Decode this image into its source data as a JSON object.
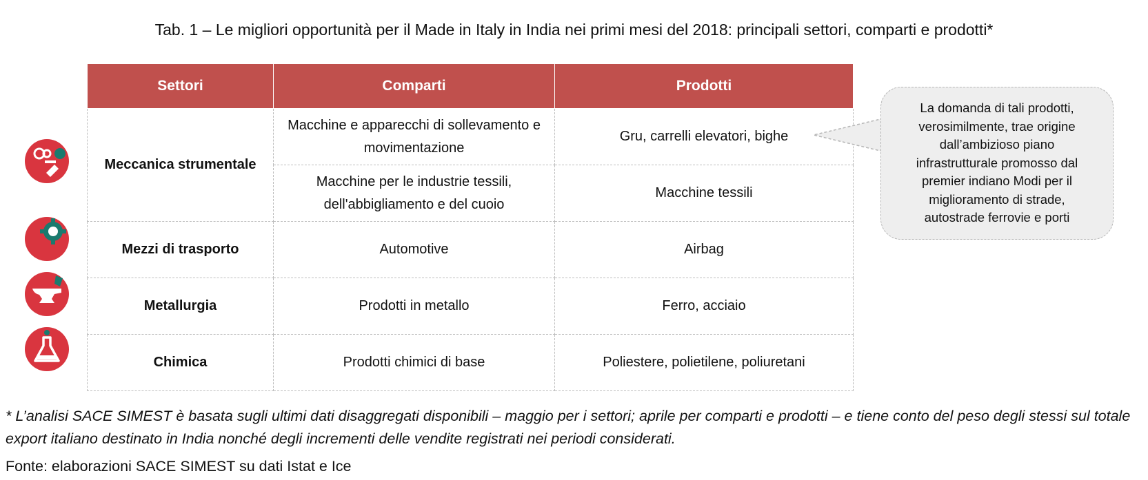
{
  "title": "Tab. 1 – Le migliori opportunità per il Made in Italy in India nei primi mesi del 2018: principali settori, comparti e prodotti*",
  "table": {
    "headers": [
      "Settori",
      "Comparti",
      "Prodotti"
    ],
    "rows": [
      {
        "sector": "Meccanica strumentale",
        "subrows": [
          {
            "comparto": "Macchine e apparecchi di sollevamento e movimentazione",
            "prodotti": "Gru, carrelli elevatori, bighe"
          },
          {
            "comparto": "Macchine per le industrie tessili, dell'abbigliamento e del cuoio",
            "prodotti": "Macchine tessili"
          }
        ]
      },
      {
        "sector": "Mezzi di trasporto",
        "comparto": "Automotive",
        "prodotti": "Airbag"
      },
      {
        "sector": "Metallurgia",
        "comparto": "Prodotti in metallo",
        "prodotti": "Ferro, acciaio"
      },
      {
        "sector": "Chimica",
        "comparto": "Prodotti chimici di base",
        "prodotti": "Poliestere, polietilene, poliuretani"
      }
    ]
  },
  "icons": [
    "gears-icon",
    "gear-car-icon",
    "anvil-icon",
    "flask-icon"
  ],
  "callout": "La domanda di tali prodotti, verosimilmente, trae origine dall’ambizioso piano infrastrutturale promosso dal premier indiano Modi per il miglioramento di strade, autostrade ferrovie e porti",
  "note": "* L’analisi SACE SIMEST è basata sugli ultimi dati disaggregati disponibili – maggio per i settori; aprile per comparti e prodotti – e tiene conto del peso degli stessi sul totale export italiano destinato in India nonché degli incrementi delle vendite registrati nei periodi considerati.",
  "source": "Fonte: elaborazioni SACE SIMEST su dati Istat e Ice",
  "colors": {
    "header_bg": "#c0504d",
    "sector_text": "#1a7a6e",
    "icon_red": "#d9353f",
    "icon_green": "#1a7a6e"
  }
}
